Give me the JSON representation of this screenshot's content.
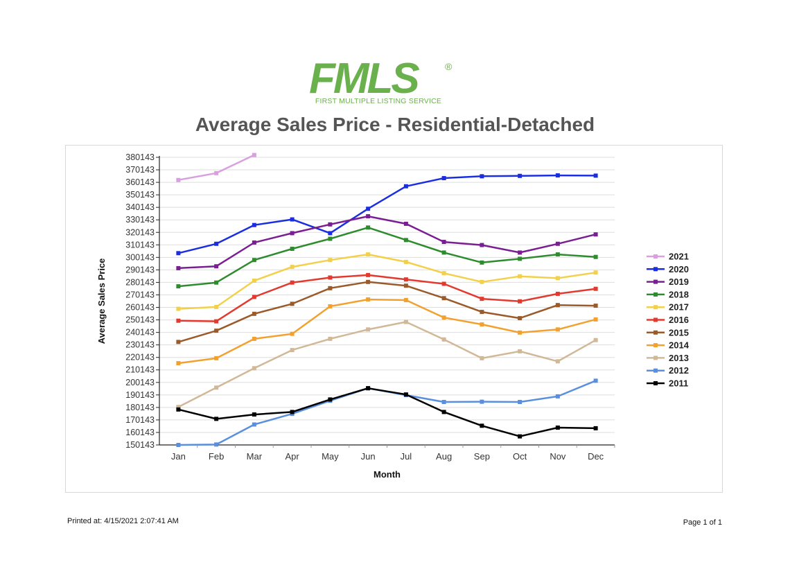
{
  "header": {
    "logo_text": "FMLS",
    "logo_reg": "®",
    "logo_sub": "FIRST MULTIPLE LISTING SERVICE",
    "title": "Average Sales Price - Residential-Detached"
  },
  "footer": {
    "printed_label": "Printed at:  4/15/2021 2:07:41 AM",
    "page_label": "Page 1 of 1"
  },
  "chart_data": {
    "type": "line",
    "xlabel": "Month",
    "ylabel": "Average Sales Price",
    "categories": [
      "Jan",
      "Feb",
      "Mar",
      "Apr",
      "May",
      "Jun",
      "Jul",
      "Aug",
      "Sep",
      "Oct",
      "Nov",
      "Dec"
    ],
    "ylim": [
      150143,
      380143
    ],
    "yticks": [
      150143,
      160143,
      170143,
      180143,
      190143,
      200143,
      210143,
      220143,
      230143,
      240143,
      250143,
      260143,
      270143,
      280143,
      290143,
      300143,
      310143,
      320143,
      330143,
      340143,
      350143,
      360143,
      370143,
      380143
    ],
    "grid": true,
    "legend_position": "right",
    "series": [
      {
        "name": "2021",
        "color": "#d9a0e0",
        "values": [
          362000,
          367500,
          382000,
          null,
          null,
          null,
          null,
          null,
          null,
          null,
          null,
          null
        ]
      },
      {
        "name": "2020",
        "color": "#1a2ee0",
        "values": [
          303500,
          311000,
          326000,
          330500,
          319500,
          339000,
          357000,
          363500,
          365000,
          365300,
          365700,
          365500
        ]
      },
      {
        "name": "2019",
        "color": "#7a1f93",
        "values": [
          291500,
          293000,
          312000,
          319500,
          326500,
          333000,
          327000,
          312500,
          310000,
          304000,
          311000,
          318500
        ]
      },
      {
        "name": "2018",
        "color": "#2e8b2e",
        "values": [
          277000,
          280000,
          298000,
          307000,
          315000,
          324000,
          314000,
          304000,
          296000,
          299000,
          302500,
          300500
        ]
      },
      {
        "name": "2017",
        "color": "#f3d04a",
        "values": [
          259000,
          260500,
          281500,
          292500,
          298000,
          302500,
          296500,
          287500,
          280500,
          285000,
          283500,
          288000
        ]
      },
      {
        "name": "2016",
        "color": "#e23a2e",
        "values": [
          249500,
          249000,
          268500,
          280000,
          284000,
          286000,
          282500,
          279000,
          267000,
          265000,
          271000,
          275000
        ]
      },
      {
        "name": "2015",
        "color": "#9a5a2a",
        "values": [
          232500,
          241500,
          255000,
          263000,
          275500,
          280500,
          277500,
          267500,
          256500,
          251500,
          262000,
          261500
        ]
      },
      {
        "name": "2014",
        "color": "#f2a12e",
        "values": [
          215500,
          219500,
          235000,
          239000,
          261000,
          266500,
          266000,
          252000,
          246500,
          240000,
          242500,
          250500
        ]
      },
      {
        "name": "2013",
        "color": "#d1b896",
        "values": [
          180500,
          196000,
          211500,
          226000,
          235000,
          242500,
          248500,
          234500,
          219500,
          225000,
          217000,
          234000
        ]
      },
      {
        "name": "2012",
        "color": "#5a8fe0",
        "values": [
          150143,
          150500,
          166500,
          175000,
          185500,
          195500,
          190000,
          184500,
          184700,
          184500,
          189000,
          201500
        ]
      },
      {
        "name": "2011",
        "color": "#000000",
        "values": [
          178500,
          171000,
          174500,
          176500,
          186500,
          195500,
          190500,
          176500,
          165500,
          157000,
          164000,
          163500
        ]
      }
    ]
  }
}
